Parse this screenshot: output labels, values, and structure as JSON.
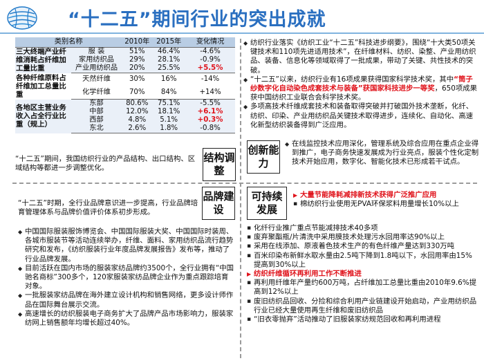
{
  "header": {
    "title": "“十二五”期间行业的突出成就"
  },
  "table": {
    "headers": [
      "类别名称",
      "2010年",
      "2015年",
      "变化情况"
    ],
    "groups": [
      {
        "category": "三大终端产业纤维消耗占纤维加工量比重",
        "rows": [
          {
            "name": "服 装",
            "y2010": "51%",
            "y2015": "46.4%",
            "change": "-4.6%"
          },
          {
            "name": "家用纺织品",
            "y2010": "29%",
            "y2015": "28.1%",
            "change": "-0.9%"
          },
          {
            "name": "产业用纺织品",
            "y2010": "20%",
            "y2015": "25.5%",
            "change": "+5.5%"
          }
        ]
      },
      {
        "category": "各种纤维原料占纤维加工总量比重",
        "rows": [
          {
            "name": "天然纤维",
            "y2010": "30%",
            "y2015": "16%",
            "change": "-14%"
          },
          {
            "name": "化学纤维",
            "y2010": "70%",
            "y2015": "84%",
            "change": "+14%"
          }
        ]
      },
      {
        "category": "各地区主营业务收入占全行业比重（规上）",
        "rows": [
          {
            "name": "东部",
            "y2010": "80.6%",
            "y2015": "75.1%",
            "change": "-5.5%"
          },
          {
            "name": "中部",
            "y2010": "12.0%",
            "y2015": "18.1%",
            "change": "+6.1%"
          },
          {
            "name": "西部",
            "y2010": "4.8%",
            "y2015": "5.1%",
            "change": "+0.3%"
          },
          {
            "name": "东北",
            "y2010": "2.6%",
            "y2015": "1.8%",
            "change": "-0.8%"
          }
        ]
      }
    ]
  },
  "structure": {
    "badge": "结构调整",
    "text": "“十二五”期间，我国纺织行业的产品结构、出口结构、区域结构等都进一步调整优化。"
  },
  "innovation": {
    "badge": "创新能力",
    "bullets": [
      {
        "a": "纺织行业落实《纺织工业“十二五”科技进步纲要》，围绕“十大类50项关键技术和110项先进适用技术”，在纤维材料、纺织、染整、产业用纺织品、装备、信息化等领域取得了一批成果，带动了关键、共性技术的突破。",
        "highlight": "",
        "b": ""
      },
      {
        "a": "“十二五”以来，纺织行业有16项成果获得国家科学技术奖，其中",
        "highlight": "“筒子纱数字化自动染色成套技术与装备”获国家科技进步一等奖",
        "b": "，650项成果获中国纺织工业联合会科学技术奖。"
      },
      {
        "a": "多项高技术纤维成套技术和装备取得突破并打破国外技术垄断，化纤、纺织、印染、产业用纺织品关键技术取得进步，连续化、自动化、高速化新型纺织装备得到广泛应用。",
        "highlight": "",
        "b": ""
      },
      {
        "a": "在线监控技术应用深化，管理系统及综合应用在重点企业得到推广，电子商务快速发展成为行业亮点，服装个性化定制技术开始应用，数字化、智能化技术已形成若干试点。",
        "highlight": "",
        "b": ""
      }
    ]
  },
  "brand": {
    "badge": "品牌建设",
    "intro": "“十二五”时期，全行业品牌意识进一步提高，行业品牌培育管理体系与品牌价值评价体系初步形成。",
    "bullets": [
      "中国国际服装服饰博览会、中国国际服装大奖、中国国际时装周、各城市服装节等活动连续举办，纤维、面料、家用纺织品流行趋势研究和发布，《纺织服装行业年度品牌发展报告》发布等，推动了行业品牌发展。",
      "目前活跃在国内市场的服装家纺品牌约3500个，全行业拥有“中国驰名商标”300多个，120家服装家纺品牌企业作为重点跟踪培育对象。",
      "一批服装家纺品牌在海外建立设计机构和销售网络，更多设计师作品在国际舞台展示交流。",
      "高速增长的纺织服装电子商务扩大了品牌产品市场影响力，服装家纺网上销售额年均增长超过40%。"
    ]
  },
  "sustainable": {
    "badge": "可持续发展",
    "heading1": "大量节能降耗减排新技术获得广泛推广应用",
    "sub1": "棉纺织行业使用无PVA环保浆料用量增长10%以上",
    "list1": [
      "化纤行业推广重点节能减排技术40多项",
      "废弃聚酯瓶/片清洗中采用膜技术处理污水回用率达90%以上",
      "采用在线添加、原液着色技术生产的有色纤维产量达到330万吨",
      "百米印染布新鲜水取水量由2.5吨下降到1.8吨以下，水回用率由15%提高到30%以上"
    ],
    "heading2": "纺织纤维循环再利用工作不断推进",
    "list2": [
      "再利用纤维年产量约600万吨，占纤维加工总量比重由2010年9.6%提高到12%以上",
      "废旧纺织品回收、分捡和综合利用产业链建设开始启动，产业用纺织品行业已经大量使用再生纤维和废旧纺织品",
      "“旧衣零抛弃”活动推动了旧服装家纺规范回收和再利用进程"
    ]
  }
}
